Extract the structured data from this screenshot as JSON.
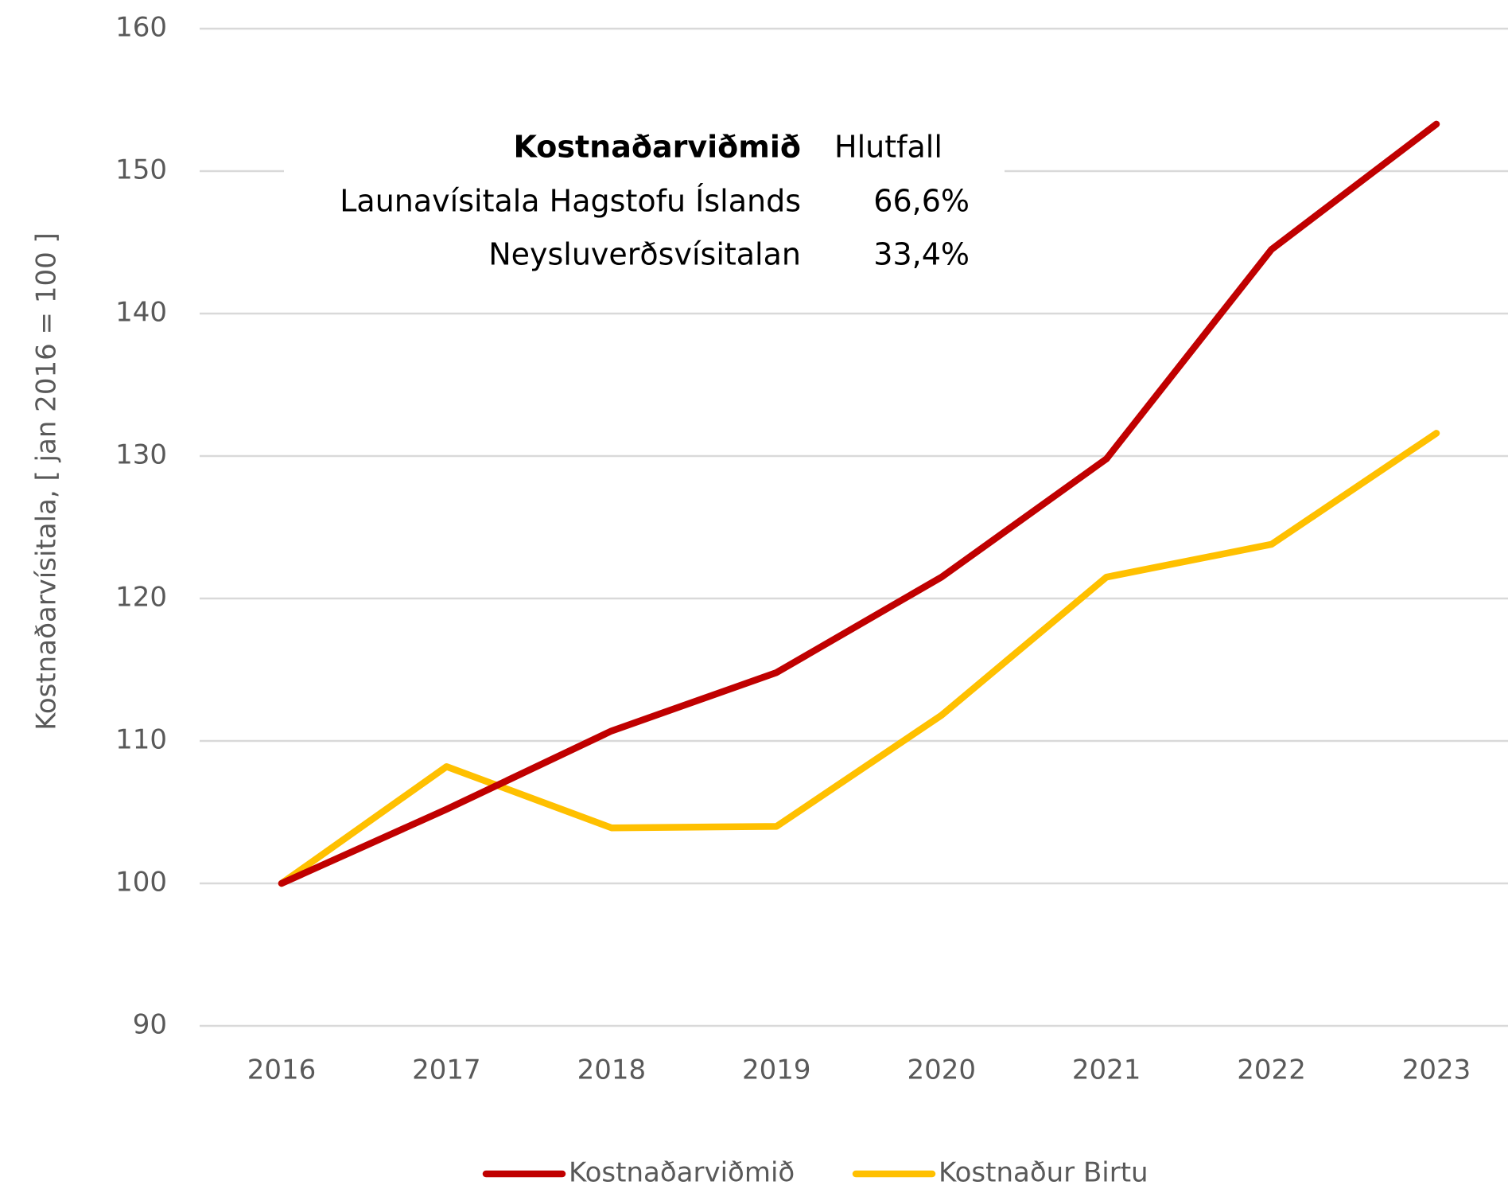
{
  "chart_data": {
    "type": "line",
    "y_label": "Kostnaðarvísitala, [ jan 2016 = 100 ]",
    "categories": [
      "2016",
      "2017",
      "2018",
      "2019",
      "2020",
      "2021",
      "2022",
      "2023"
    ],
    "series": [
      {
        "name": "Kostnaðarviðmið",
        "color": "#c00000",
        "values": [
          100,
          105.2,
          110.7,
          114.8,
          121.5,
          129.8,
          144.5,
          153.3
        ]
      },
      {
        "name": "Kostnaður Birtu",
        "color": "#ffc000",
        "values": [
          100,
          108.2,
          103.9,
          104,
          111.8,
          121.5,
          123.8,
          131.6
        ]
      }
    ],
    "ylim": [
      90,
      160
    ],
    "yticks": [
      90,
      100,
      110,
      120,
      130,
      140,
      150,
      160
    ],
    "grid": true,
    "legend": "bottom",
    "annotation_table": {
      "header": [
        "Kostnaðarviðmið",
        "Hlutfall"
      ],
      "rows": [
        [
          "Launavísitala Hagstofu Íslands",
          "66,6%"
        ],
        [
          "Neysluverðsvísitalan",
          "33,4%"
        ]
      ]
    }
  }
}
